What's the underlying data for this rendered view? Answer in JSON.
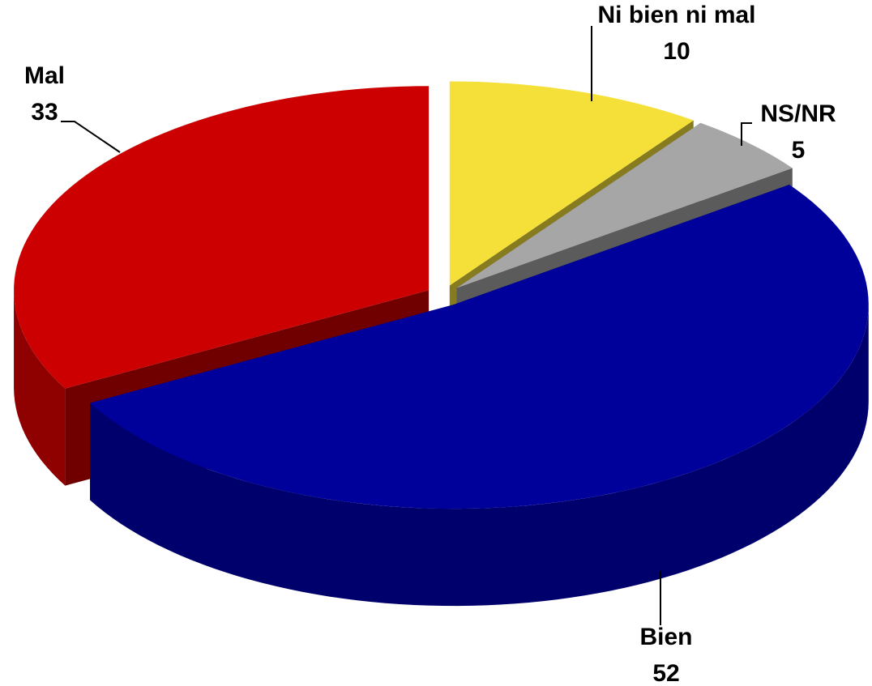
{
  "chart_data": {
    "type": "pie3d",
    "categories": [
      "Ni bien ni mal",
      "NS/NR",
      "Bien",
      "Mal"
    ],
    "values": [
      10,
      5,
      52,
      33
    ],
    "colors": [
      "#f5e03a",
      "#a6a6a6",
      "#00009a",
      "#cc0000"
    ]
  }
}
